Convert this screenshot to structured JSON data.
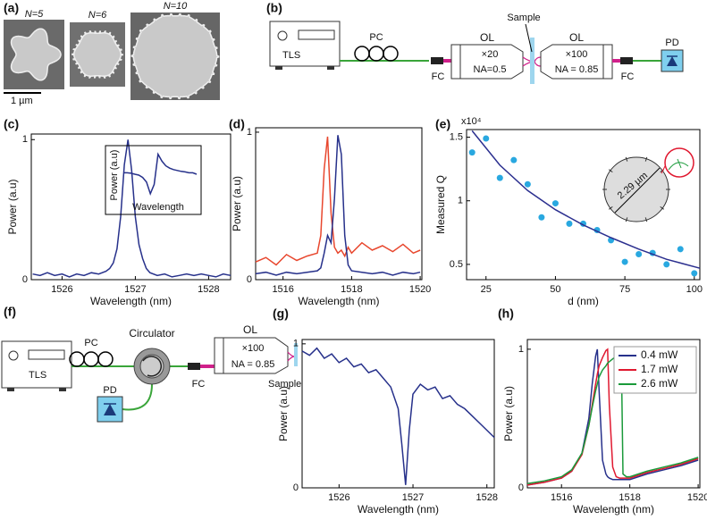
{
  "panel_a": {
    "label": "(a)",
    "captions": [
      "N=5",
      "N=6",
      "N=10"
    ],
    "scale_bar": "1 µm"
  },
  "panel_b": {
    "label": "(b)",
    "tls": "TLS",
    "pc": "PC",
    "fc_in": "FC",
    "ol_in": "OL",
    "ol_in_mag": "×20",
    "ol_in_na": "NA=0.5",
    "sample": "Sample",
    "ol_out": "OL",
    "ol_out_mag": "×100",
    "ol_out_na": "NA = 0.85",
    "fc_out": "FC",
    "pd": "PD"
  },
  "panel_f": {
    "label": "(f)",
    "tls": "TLS",
    "pc": "PC",
    "circulator": "Circulator",
    "pd": "PD",
    "fc": "FC",
    "ol": "OL",
    "ol_mag": "×100",
    "ol_na": "NA = 0.85",
    "sample": "Sample"
  },
  "chart_data": [
    {
      "type": "line",
      "label": "(c)",
      "xlabel": "Wavelength (nm)",
      "ylabel": "Power (a.u)",
      "xlim": [
        1525.58,
        1528.3
      ],
      "ylim": [
        0,
        1.04
      ],
      "xticks": [
        1526,
        1527,
        1528
      ],
      "yticks": [
        0,
        1
      ],
      "x": [
        1525.6,
        1525.7,
        1525.8,
        1525.9,
        1526.0,
        1526.1,
        1526.2,
        1526.3,
        1526.4,
        1526.5,
        1526.6,
        1526.65,
        1526.7,
        1526.75,
        1526.8,
        1526.85,
        1526.9,
        1526.95,
        1527.0,
        1527.05,
        1527.1,
        1527.15,
        1527.2,
        1527.3,
        1527.4,
        1527.5,
        1527.6,
        1527.7,
        1527.8,
        1527.9,
        1528.0,
        1528.1,
        1528.2,
        1528.3
      ],
      "series": [
        {
          "color": "#27318b",
          "values": [
            0.04,
            0.03,
            0.05,
            0.03,
            0.04,
            0.02,
            0.04,
            0.03,
            0.05,
            0.04,
            0.06,
            0.08,
            0.12,
            0.22,
            0.45,
            0.82,
            1.0,
            0.78,
            0.45,
            0.25,
            0.15,
            0.08,
            0.05,
            0.03,
            0.04,
            0.02,
            0.03,
            0.04,
            0.03,
            0.04,
            0.03,
            0.02,
            0.04,
            0.03
          ]
        }
      ],
      "inset": {
        "ylabel": "Power (a.u)",
        "xlabel": "Wavelength",
        "color": "#27318b",
        "values": [
          0.55,
          0.55,
          0.54,
          0.52,
          0.5,
          0.45,
          0.35,
          0.1,
          0.3,
          0.95,
          0.8,
          0.7,
          0.65,
          0.62,
          0.6,
          0.58,
          0.57,
          0.55,
          0.55,
          0.52
        ]
      }
    },
    {
      "type": "line",
      "label": "(d)",
      "xlabel": "Wavelength (nm)",
      "ylabel": "Power (a.u)",
      "xlim": [
        1515.2,
        1520.05
      ],
      "ylim": [
        0,
        1.03
      ],
      "xticks": [
        1516,
        1518,
        1520
      ],
      "yticks": [
        0,
        1
      ],
      "x": [
        1515.2,
        1515.5,
        1515.8,
        1516.1,
        1516.4,
        1516.7,
        1517.0,
        1517.1,
        1517.2,
        1517.3,
        1517.4,
        1517.5,
        1517.6,
        1517.7,
        1517.8,
        1517.9,
        1518.0,
        1518.3,
        1518.6,
        1518.9,
        1519.2,
        1519.5,
        1519.8,
        1520.0
      ],
      "series": [
        {
          "color": "#e8472e",
          "values": [
            0.12,
            0.15,
            0.1,
            0.17,
            0.13,
            0.16,
            0.18,
            0.3,
            0.75,
            0.97,
            0.45,
            0.22,
            0.18,
            0.2,
            0.16,
            0.22,
            0.18,
            0.25,
            0.2,
            0.23,
            0.19,
            0.24,
            0.18,
            0.2
          ]
        },
        {
          "color": "#27318b",
          "values": [
            0.04,
            0.05,
            0.03,
            0.05,
            0.04,
            0.05,
            0.06,
            0.08,
            0.18,
            0.3,
            0.25,
            0.55,
            0.98,
            0.85,
            0.3,
            0.1,
            0.06,
            0.05,
            0.04,
            0.05,
            0.03,
            0.05,
            0.04,
            0.05
          ]
        }
      ]
    },
    {
      "type": "scatter",
      "label": "(e)",
      "xlabel": "d (nm)",
      "ylabel": "Measured Q",
      "multiplier": "x10⁴",
      "inset_label": "2.29 µm",
      "xlim": [
        18,
        102
      ],
      "ylim": [
        0.38,
        1.56
      ],
      "xticks": [
        25,
        50,
        75,
        100
      ],
      "yticks": [
        0.5,
        1,
        1.5
      ],
      "points": {
        "color": "#29a8e0",
        "x": [
          20,
          25,
          30,
          35,
          40,
          45,
          50,
          55,
          60,
          65,
          70,
          75,
          80,
          85,
          90,
          95,
          100
        ],
        "values": [
          1.38,
          1.49,
          1.18,
          1.32,
          1.13,
          0.87,
          0.98,
          0.82,
          0.82,
          0.77,
          0.69,
          0.52,
          0.58,
          0.59,
          0.5,
          0.62,
          0.43
        ]
      },
      "fit": {
        "color": "#2b2f8f",
        "x": [
          20,
          30,
          40,
          50,
          60,
          70,
          80,
          90,
          102
        ],
        "values": [
          1.55,
          1.28,
          1.08,
          0.93,
          0.81,
          0.71,
          0.62,
          0.54,
          0.47
        ]
      }
    },
    {
      "type": "line",
      "label": "(g)",
      "xlabel": "Wavelength (nm)",
      "ylabel": "Power (a.u)",
      "xlim": [
        1525.5,
        1528.1
      ],
      "ylim": [
        0,
        1.03
      ],
      "xticks": [
        1526,
        1527,
        1528
      ],
      "yticks": [
        0,
        1
      ],
      "x": [
        1525.5,
        1525.6,
        1525.7,
        1525.8,
        1525.9,
        1526.0,
        1526.1,
        1526.2,
        1526.3,
        1526.4,
        1526.5,
        1526.6,
        1526.7,
        1526.8,
        1526.85,
        1526.9,
        1526.95,
        1527.0,
        1527.1,
        1527.2,
        1527.3,
        1527.4,
        1527.5,
        1527.6,
        1527.7,
        1527.8,
        1527.9,
        1528.0,
        1528.1
      ],
      "series": [
        {
          "color": "#27318b",
          "values": [
            0.95,
            0.92,
            0.97,
            0.9,
            0.93,
            0.87,
            0.9,
            0.84,
            0.86,
            0.8,
            0.82,
            0.76,
            0.7,
            0.55,
            0.3,
            0.02,
            0.4,
            0.65,
            0.72,
            0.68,
            0.7,
            0.62,
            0.64,
            0.58,
            0.55,
            0.5,
            0.45,
            0.4,
            0.35
          ]
        }
      ]
    },
    {
      "type": "line",
      "label": "(h)",
      "xlabel": "Wavelength (nm)",
      "ylabel": "Power (a.u)",
      "legend": "upper right",
      "xlim": [
        1515.0,
        1520.05
      ],
      "ylim": [
        0,
        1.07
      ],
      "xticks": [
        1516,
        1518,
        1520
      ],
      "yticks": [
        0,
        1
      ],
      "x": [
        1515.0,
        1515.5,
        1516.0,
        1516.3,
        1516.6,
        1516.8,
        1516.9,
        1517.0,
        1517.05,
        1517.1,
        1517.2,
        1517.3,
        1517.35,
        1517.4,
        1517.5,
        1517.6,
        1517.7,
        1517.75,
        1517.8,
        1517.9,
        1518.0,
        1518.5,
        1519.0,
        1519.5,
        1520.0
      ],
      "series": [
        {
          "name": "0.4 mW",
          "color": "#27318b",
          "values": [
            0.02,
            0.04,
            0.07,
            0.12,
            0.25,
            0.5,
            0.75,
            0.95,
            1.0,
            0.7,
            0.2,
            0.1,
            0.08,
            0.07,
            0.06,
            0.06,
            0.06,
            0.06,
            0.06,
            0.06,
            0.06,
            0.1,
            0.13,
            0.16,
            0.2
          ]
        },
        {
          "name": "1.7 mW",
          "color": "#e0182f",
          "values": [
            0.02,
            0.04,
            0.07,
            0.12,
            0.24,
            0.45,
            0.6,
            0.75,
            0.82,
            0.88,
            0.94,
            0.99,
            1.0,
            0.6,
            0.15,
            0.08,
            0.07,
            0.07,
            0.07,
            0.07,
            0.07,
            0.11,
            0.14,
            0.17,
            0.21
          ]
        },
        {
          "name": "2.6 mW",
          "color": "#1a9a3a",
          "values": [
            0.03,
            0.05,
            0.08,
            0.13,
            0.25,
            0.45,
            0.58,
            0.7,
            0.75,
            0.8,
            0.85,
            0.88,
            0.9,
            0.91,
            0.93,
            0.95,
            0.97,
            0.98,
            0.1,
            0.08,
            0.08,
            0.12,
            0.15,
            0.18,
            0.22
          ]
        }
      ]
    }
  ]
}
